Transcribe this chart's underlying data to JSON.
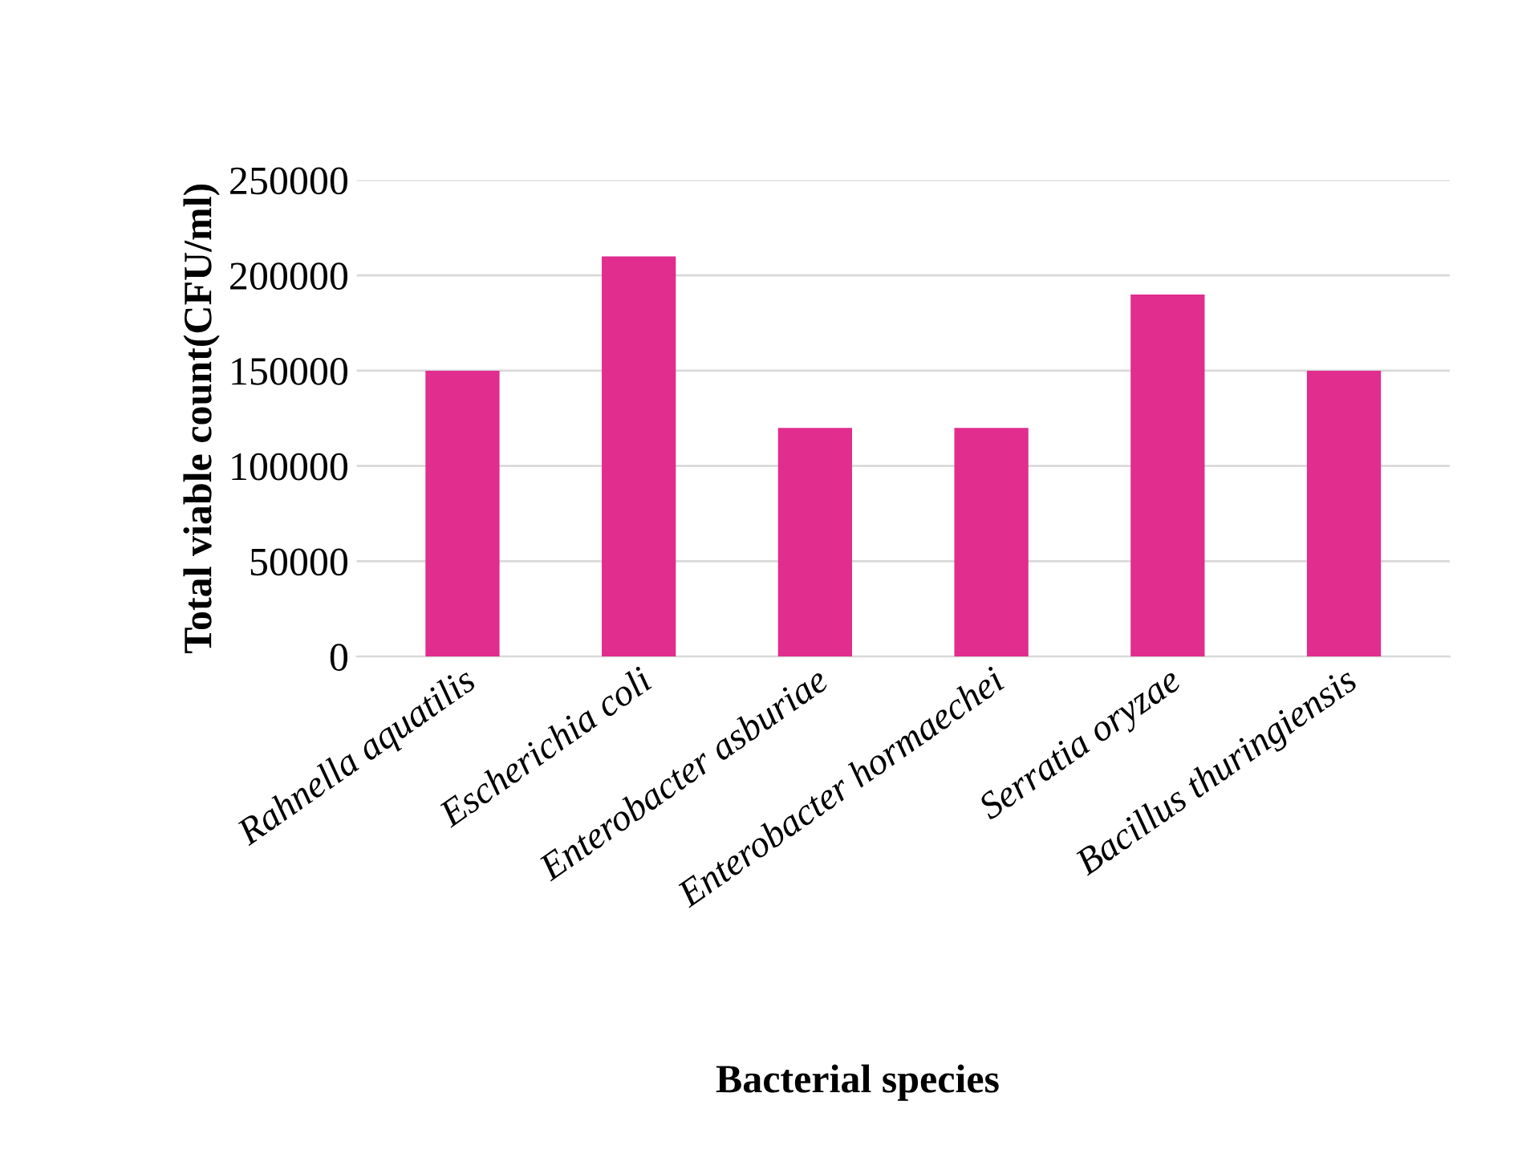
{
  "chart_data": {
    "type": "bar",
    "xlabel": "Bacterial species",
    "ylabel": "Total viable count(CFU/ml)",
    "categories": [
      "Rahnella aquatilis",
      "Escherichia coli",
      "Enterobacter asburiae",
      "Enterobacter hormaechei",
      "Serratia oryzae",
      "Bacillus thuringiensis"
    ],
    "values": [
      150000,
      210000,
      120000,
      120000,
      190000,
      150000
    ],
    "color": "#e02d8e",
    "ylim": [
      0,
      250000
    ],
    "yticks": [
      0,
      50000,
      100000,
      150000,
      200000,
      250000
    ],
    "grid": "y",
    "legend": false
  }
}
